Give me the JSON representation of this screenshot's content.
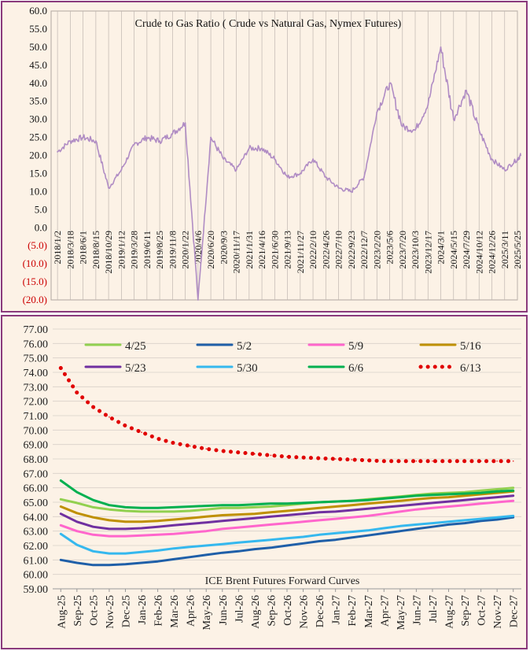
{
  "chart_data": [
    {
      "type": "line",
      "title": "Crude to Gas Ratio ( Crude vs Natural Gas, Nymex Futures)",
      "ylim": [
        -20,
        60
      ],
      "y_ticks": [
        "60.0",
        "55.0",
        "50.0",
        "45.0",
        "40.0",
        "35.0",
        "30.0",
        "25.0",
        "20.0",
        "15.0",
        "10.0",
        "5.0",
        "0.0",
        "(5.0)",
        "(10.0)",
        "(15.0)",
        "(20.0)"
      ],
      "negative_tick_color": "#cc0000",
      "line_color": "#b08cc4",
      "grid": "vertical",
      "x_tick_labels": [
        "2018/1/2",
        "2018/3/18",
        "2018/6/1",
        "2018/8/15",
        "2018/10/29",
        "2019/1/12",
        "2019/3/28",
        "2019/6/11",
        "2019/8/25",
        "2019/11/8",
        "2020/1/22",
        "2020/4/6",
        "2020/6/20",
        "2020/9/3",
        "2020/11/17",
        "2021/1/31",
        "2021/4/16",
        "2021/6/30",
        "2021/9/13",
        "2021/11/27",
        "2022/2/10",
        "2022/4/26",
        "2022/7/10",
        "2022/9/23",
        "2022/12/7",
        "2023/2/20",
        "2023/5/6",
        "2023/7/20",
        "2023/10/3",
        "2023/12/17",
        "2024/3/1",
        "2024/5/15",
        "2024/7/29",
        "2024/10/12",
        "2024/12/26",
        "2025/3/11",
        "2025/5/25"
      ],
      "x": [
        "2018/1/2",
        "2018/3/18",
        "2018/6/1",
        "2018/8/15",
        "2018/10/29",
        "2019/1/12",
        "2019/3/28",
        "2019/6/11",
        "2019/8/25",
        "2019/11/8",
        "2020/1/22",
        "2020/4/6",
        "2020/6/20",
        "2020/9/3",
        "2020/11/17",
        "2021/1/31",
        "2021/4/16",
        "2021/6/30",
        "2021/9/13",
        "2021/11/27",
        "2022/2/10",
        "2022/4/26",
        "2022/7/10",
        "2022/9/23",
        "2022/12/7",
        "2023/2/20",
        "2023/5/6",
        "2023/7/20",
        "2023/10/3",
        "2023/12/17",
        "2024/3/1",
        "2024/5/15",
        "2024/7/29",
        "2024/10/12",
        "2024/12/26",
        "2025/3/11",
        "2025/5/25",
        "2025/6/13"
      ],
      "values": [
        21,
        24,
        25,
        24,
        11,
        16,
        23,
        25,
        24,
        26,
        29,
        -20,
        25,
        19,
        16,
        22,
        22,
        19,
        14,
        15,
        19,
        14,
        11,
        10,
        14,
        32,
        40,
        28,
        27,
        34,
        50,
        30,
        38,
        27,
        19,
        16,
        19,
        20
      ]
    },
    {
      "type": "line",
      "title": "ICE Brent Futures Forward Curves",
      "ylim": [
        59,
        77
      ],
      "y_ticks": [
        "77.00",
        "76.00",
        "75.00",
        "74.00",
        "73.00",
        "72.00",
        "71.00",
        "70.00",
        "69.00",
        "68.00",
        "67.00",
        "66.00",
        "65.00",
        "64.00",
        "63.00",
        "62.00",
        "61.00",
        "60.00",
        "59.00"
      ],
      "grid": "horizontal",
      "x_tick_labels": [
        "Aug-25",
        "Sep-25",
        "Oct-25",
        "Nov-25",
        "Dec-25",
        "Jan-26",
        "Feb-26",
        "Mar-26",
        "Apr-26",
        "May-26",
        "Jun-26",
        "Jul-26",
        "Aug-26",
        "Sep-26",
        "Oct-26",
        "Nov-26",
        "Dec-26",
        "Jan-27",
        "Feb-27",
        "Mar-27",
        "Apr-27",
        "May-27",
        "Jun-27",
        "Jul-27",
        "Aug-27",
        "Sep-27",
        "Oct-27",
        "Nov-27",
        "Dec-27"
      ],
      "legend_position": "top",
      "series": [
        {
          "name": "4/25",
          "color": "#92d050",
          "style": "solid",
          "values": [
            65.2,
            64.95,
            64.65,
            64.5,
            64.4,
            64.35,
            64.35,
            64.35,
            64.4,
            64.5,
            64.6,
            64.6,
            64.65,
            64.7,
            64.8,
            64.9,
            65.0,
            65.05,
            65.1,
            65.2,
            65.3,
            65.4,
            65.5,
            65.6,
            65.65,
            65.7,
            65.8,
            65.9,
            66.0
          ]
        },
        {
          "name": "5/2",
          "color": "#1f5fa8",
          "style": "solid",
          "values": [
            61.0,
            60.8,
            60.65,
            60.65,
            60.7,
            60.8,
            60.9,
            61.05,
            61.2,
            61.35,
            61.5,
            61.6,
            61.75,
            61.85,
            62.0,
            62.15,
            62.3,
            62.4,
            62.55,
            62.7,
            62.85,
            63.0,
            63.15,
            63.3,
            63.45,
            63.55,
            63.7,
            63.8,
            63.95
          ]
        },
        {
          "name": "5/9",
          "color": "#ff66cc",
          "style": "solid",
          "values": [
            63.4,
            63.0,
            62.75,
            62.65,
            62.65,
            62.7,
            62.75,
            62.8,
            62.9,
            63.0,
            63.15,
            63.25,
            63.35,
            63.45,
            63.55,
            63.65,
            63.75,
            63.85,
            63.95,
            64.05,
            64.2,
            64.35,
            64.5,
            64.6,
            64.7,
            64.8,
            64.9,
            65.0,
            65.1
          ]
        },
        {
          "name": "5/16",
          "color": "#bf9000",
          "style": "solid",
          "values": [
            64.7,
            64.25,
            63.95,
            63.75,
            63.65,
            63.65,
            63.7,
            63.8,
            63.9,
            64.0,
            64.1,
            64.15,
            64.2,
            64.3,
            64.4,
            64.5,
            64.6,
            64.7,
            64.8,
            64.9,
            65.0,
            65.1,
            65.2,
            65.3,
            65.35,
            65.45,
            65.55,
            65.65,
            65.75
          ]
        },
        {
          "name": "5/23",
          "color": "#7030a0",
          "style": "solid",
          "values": [
            64.2,
            63.65,
            63.3,
            63.15,
            63.15,
            63.2,
            63.3,
            63.4,
            63.5,
            63.6,
            63.7,
            63.8,
            63.9,
            64.0,
            64.1,
            64.2,
            64.3,
            64.35,
            64.45,
            64.55,
            64.65,
            64.75,
            64.85,
            64.95,
            65.05,
            65.15,
            65.25,
            65.35,
            65.45
          ]
        },
        {
          "name": "5/30",
          "color": "#35b8ee",
          "style": "solid",
          "values": [
            62.8,
            62.05,
            61.6,
            61.45,
            61.45,
            61.55,
            61.65,
            61.8,
            61.9,
            62.0,
            62.1,
            62.2,
            62.3,
            62.4,
            62.5,
            62.6,
            62.75,
            62.85,
            62.95,
            63.05,
            63.2,
            63.35,
            63.45,
            63.55,
            63.65,
            63.75,
            63.85,
            63.95,
            64.05
          ]
        },
        {
          "name": "6/6",
          "color": "#00b050",
          "style": "solid",
          "values": [
            66.5,
            65.7,
            65.15,
            64.8,
            64.65,
            64.6,
            64.6,
            64.65,
            64.7,
            64.75,
            64.8,
            64.8,
            64.85,
            64.9,
            64.9,
            64.95,
            65.0,
            65.05,
            65.1,
            65.15,
            65.25,
            65.35,
            65.45,
            65.5,
            65.55,
            65.6,
            65.65,
            65.75,
            65.8
          ]
        },
        {
          "name": "6/13",
          "color": "#e00000",
          "style": "dotted",
          "values": [
            74.3,
            72.6,
            71.6,
            70.9,
            70.3,
            69.85,
            69.4,
            69.1,
            68.9,
            68.7,
            68.55,
            68.45,
            68.35,
            68.25,
            68.15,
            68.1,
            68.05,
            68.0,
            67.95,
            67.9,
            67.85,
            67.85,
            67.85,
            67.85,
            67.85,
            67.85,
            67.85,
            67.85,
            67.85
          ]
        }
      ]
    }
  ]
}
